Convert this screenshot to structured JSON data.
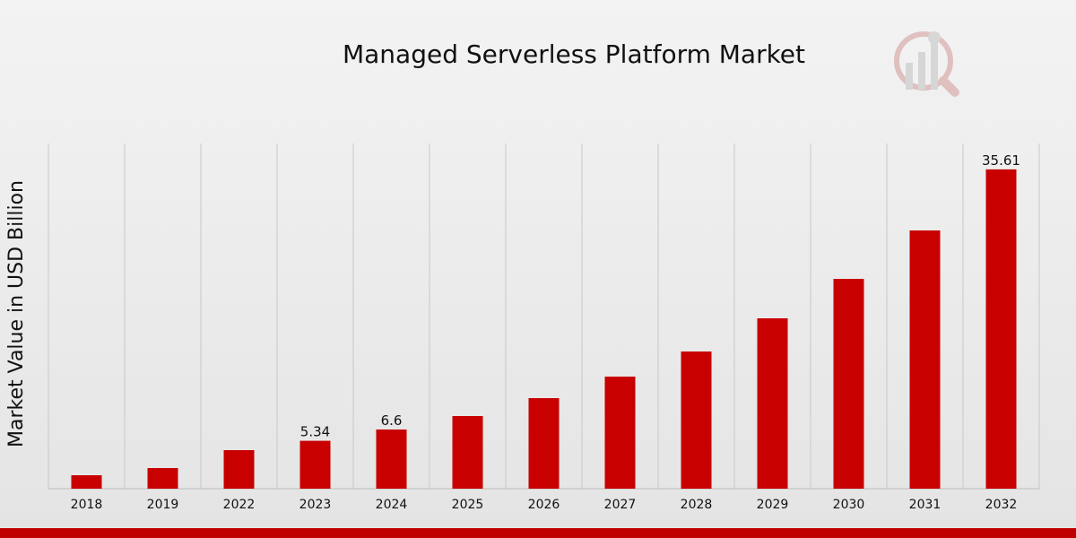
{
  "chart_data": {
    "type": "bar",
    "title": "Managed Serverless Platform Market",
    "xlabel": "",
    "ylabel": "Market Value in USD Billion",
    "categories": [
      "2018",
      "2019",
      "2022",
      "2023",
      "2024",
      "2025",
      "2026",
      "2027",
      "2028",
      "2029",
      "2030",
      "2031",
      "2032"
    ],
    "values": [
      1.5,
      2.3,
      4.3,
      5.34,
      6.6,
      8.1,
      10.1,
      12.5,
      15.3,
      19.0,
      23.4,
      28.8,
      35.61
    ],
    "data_labels": [
      "",
      "",
      "",
      "5.34",
      "6.6",
      "",
      "",
      "",
      "",
      "",
      "",
      "",
      "35.61"
    ],
    "ylim": [
      0,
      39
    ],
    "grid": "vertical",
    "legend": "none"
  },
  "colors": {
    "bar": "#c80000",
    "grid": "#c8c8c8",
    "footer": "#c00000"
  },
  "watermark": {
    "icon": "market-research-logo-icon"
  }
}
